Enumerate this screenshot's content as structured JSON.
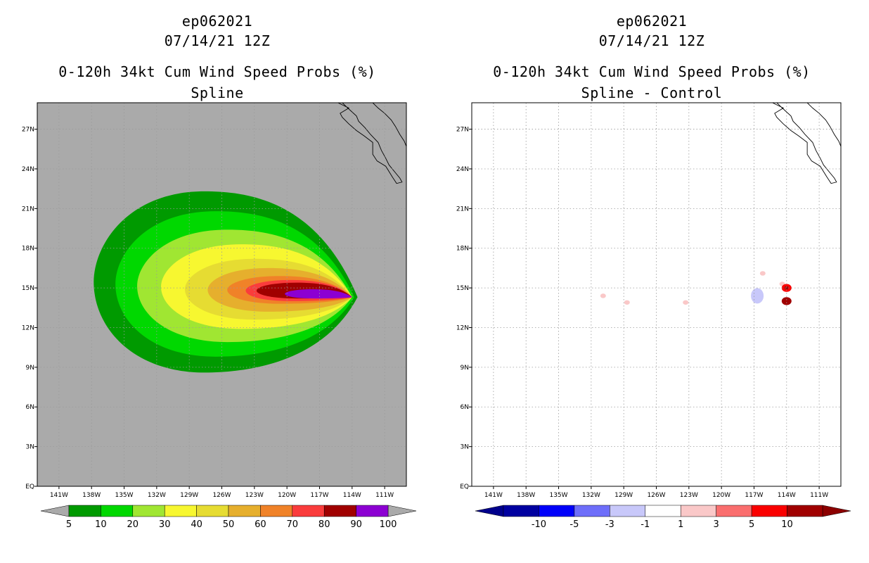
{
  "chart_data": [
    {
      "type": "heatmap",
      "storm_id": "ep062021",
      "datetime": "07/14/21 12Z",
      "title": "0-120h 34kt Cum Wind Speed Probs (%)",
      "subtitle": "Spline",
      "xlim": [
        -143,
        -109
      ],
      "ylim": [
        0,
        29
      ],
      "x_ticks": [
        "141W",
        "138W",
        "135W",
        "132W",
        "129W",
        "126W",
        "123W",
        "120W",
        "117W",
        "114W",
        "111W"
      ],
      "y_ticks": [
        "EQ",
        "3N",
        "6N",
        "9N",
        "12N",
        "15N",
        "18N",
        "21N",
        "24N",
        "27N"
      ],
      "grid": true,
      "background": "#aaaaaa",
      "contours": [
        {
          "level": 5,
          "color": "#009a00",
          "lon_range": [
            -137.8,
            -113.5
          ],
          "lat_range": [
            8.6,
            22.3
          ]
        },
        {
          "level": 10,
          "color": "#00d800",
          "lon_range": [
            -135.8,
            -113.8
          ],
          "lat_range": [
            9.8,
            20.8
          ]
        },
        {
          "level": 20,
          "color": "#a0e632",
          "lon_range": [
            -133.8,
            -114.0
          ],
          "lat_range": [
            10.9,
            19.4
          ]
        },
        {
          "level": 30,
          "color": "#f7f730",
          "lon_range": [
            -131.6,
            -114.0
          ],
          "lat_range": [
            11.9,
            18.3
          ]
        },
        {
          "level": 40,
          "color": "#e6dc32",
          "lon_range": [
            -129.4,
            -114.0
          ],
          "lat_range": [
            12.6,
            17.2
          ]
        },
        {
          "level": 50,
          "color": "#e6af2d",
          "lon_range": [
            -127.3,
            -114.0
          ],
          "lat_range": [
            13.2,
            16.5
          ]
        },
        {
          "level": 60,
          "color": "#f08228",
          "lon_range": [
            -125.5,
            -114.0
          ],
          "lat_range": [
            13.8,
            15.9
          ]
        },
        {
          "level": 70,
          "color": "#fa3c3c",
          "lon_range": [
            -123.8,
            -114.0
          ],
          "lat_range": [
            14.0,
            15.6
          ]
        },
        {
          "level": 80,
          "color": "#a00000",
          "lon_range": [
            -122.8,
            -114.0
          ],
          "lat_range": [
            14.2,
            15.4
          ]
        },
        {
          "level": 90,
          "color": "#8c00d2",
          "lon_range": [
            -120.2,
            -114.0
          ],
          "lat_range": [
            14.2,
            14.9
          ]
        }
      ],
      "colorbar": {
        "labels": [
          "5",
          "10",
          "20",
          "30",
          "40",
          "50",
          "60",
          "70",
          "80",
          "90",
          "100"
        ],
        "colors": [
          "#009a00",
          "#00d800",
          "#a0e632",
          "#f7f730",
          "#e6dc32",
          "#e6af2d",
          "#f08228",
          "#fa3c3c",
          "#a00000",
          "#8c00d2"
        ],
        "under_color": "#aaaaaa",
        "over_color": "#aaaaaa"
      }
    },
    {
      "type": "heatmap",
      "storm_id": "ep062021",
      "datetime": "07/14/21 12Z",
      "title": "0-120h 34kt Cum Wind Speed Probs (%)",
      "subtitle": "Spline - Control",
      "xlim": [
        -143,
        -109
      ],
      "ylim": [
        0,
        29
      ],
      "x_ticks": [
        "141W",
        "138W",
        "135W",
        "132W",
        "129W",
        "126W",
        "123W",
        "120W",
        "117W",
        "114W",
        "111W"
      ],
      "y_ticks": [
        "EQ",
        "3N",
        "6N",
        "9N",
        "12N",
        "15N",
        "18N",
        "21N",
        "24N",
        "27N"
      ],
      "grid": true,
      "background": "#ffffff",
      "features": [
        {
          "lon": -130.9,
          "lat": 14.4,
          "value": 1,
          "color": "#fac8c8"
        },
        {
          "lon": -128.7,
          "lat": 13.9,
          "value": 1,
          "color": "#fac8c8"
        },
        {
          "lon": -123.3,
          "lat": 13.9,
          "value": 1,
          "color": "#fac8c8"
        },
        {
          "lon": -116.7,
          "lat": 14.4,
          "value": -1,
          "color": "#c8c8fa"
        },
        {
          "lon": -114.4,
          "lat": 15.3,
          "value": 1,
          "color": "#fac8c8"
        },
        {
          "lon": -114.0,
          "lat": 15.0,
          "value": 5,
          "color": "#fa0000"
        },
        {
          "lon": -114.0,
          "lat": 14.0,
          "value": 10,
          "color": "#a00000"
        },
        {
          "lon": -116.2,
          "lat": 16.1,
          "value": 1,
          "color": "#fac8c8"
        }
      ],
      "colorbar": {
        "labels": [
          "-10",
          "-5",
          "-3",
          "-1",
          "1",
          "3",
          "5",
          "10"
        ],
        "colors": [
          "#0000a0",
          "#0000fa",
          "#6e6efa",
          "#c8c8fa",
          "#ffffff",
          "#fac8c8",
          "#fa6e6e",
          "#fa0000",
          "#a00000"
        ],
        "under_color": "#00008c",
        "over_color": "#8c0000"
      }
    }
  ]
}
